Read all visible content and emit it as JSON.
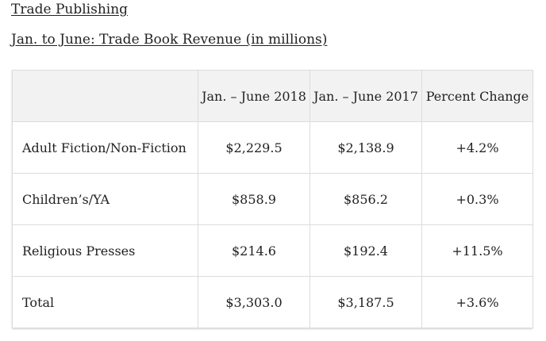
{
  "section_title": "Trade Publishing",
  "table_title": "Jan. to June: Trade Book Revenue (in millions)",
  "table": {
    "headers": [
      "",
      "Jan. – June 2018",
      "Jan. – June 2017",
      "Percent Change"
    ],
    "rows": [
      [
        "Adult Fiction/Non-Fiction",
        "$2,229.5",
        "$2,138.9",
        "+4.2%"
      ],
      [
        "Children’s/YA",
        "$858.9",
        "$856.2",
        "+0.3%"
      ],
      [
        "Religious Presses",
        "$214.6",
        "$192.4",
        "+11.5%"
      ],
      [
        "Total",
        "$3,303.0",
        "$3,187.5",
        "+3.6%"
      ]
    ]
  }
}
